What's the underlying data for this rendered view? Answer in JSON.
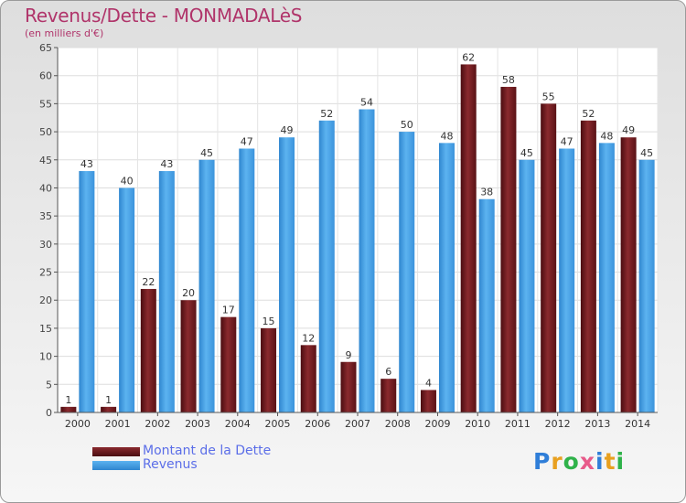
{
  "header": {
    "title": "Revenus/Dette - MONMADALèS",
    "subtitle": "(en milliers d'€)"
  },
  "logo": {
    "text": "Proxiti"
  },
  "chart_data": {
    "type": "bar",
    "title": "Revenus/Dette - MONMADALèS",
    "subtitle": "(en milliers d'€)",
    "xlabel": "",
    "ylabel": "",
    "ylim": [
      0,
      65
    ],
    "yticks": [
      0,
      5,
      10,
      15,
      20,
      25,
      30,
      35,
      40,
      45,
      50,
      55,
      60,
      65
    ],
    "grid": true,
    "legend_position": "bottom-left",
    "categories": [
      "2000",
      "2001",
      "2002",
      "2003",
      "2004",
      "2005",
      "2006",
      "2007",
      "2008",
      "2009",
      "2010",
      "2011",
      "2012",
      "2013",
      "2014"
    ],
    "series": [
      {
        "name": "Montant de la Dette",
        "color": "#6e1a1e",
        "values": [
          1,
          1,
          22,
          20,
          17,
          15,
          12,
          9,
          6,
          4,
          62,
          58,
          55,
          52,
          49
        ]
      },
      {
        "name": "Revenus",
        "color": "#4aa3e6",
        "values": [
          43,
          40,
          43,
          45,
          47,
          49,
          52,
          54,
          50,
          48,
          38,
          45,
          47,
          48,
          45
        ]
      }
    ]
  }
}
